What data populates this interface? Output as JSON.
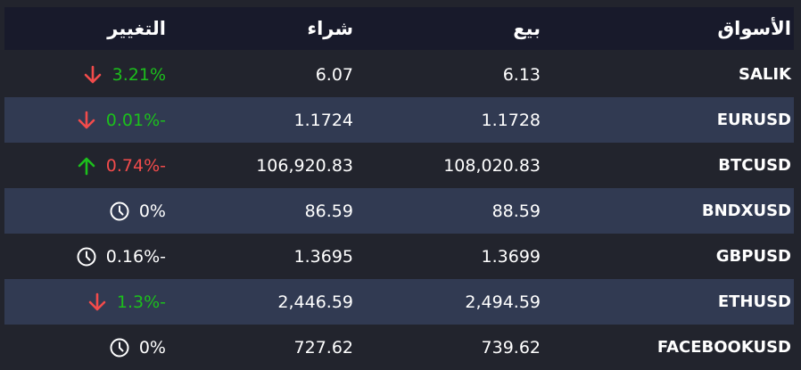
{
  "header": {
    "markets": "الأسواق",
    "sell": "بيع",
    "buy": "شراء",
    "change": "التغيير"
  },
  "colors": {
    "green": "#1cbf1c",
    "red": "#f24b4b",
    "header_bg": "#181a2b",
    "alt_row_bg": "#313a52",
    "bg": "#22242d"
  },
  "rows": [
    {
      "market": "SALIK",
      "sell": "6.13",
      "buy": "6.07",
      "change": "3.21%",
      "change_color": "green",
      "icon": "arrow-down-icon"
    },
    {
      "market": "EURUSD",
      "sell": "1.1728",
      "buy": "1.1724",
      "change": "0.01%-",
      "change_color": "green",
      "icon": "arrow-down-icon"
    },
    {
      "market": "BTCUSD",
      "sell": "108,020.83",
      "buy": "106,920.83",
      "change": "0.74%-",
      "change_color": "red",
      "icon": "arrow-up-icon"
    },
    {
      "market": "BNDXUSD",
      "sell": "88.59",
      "buy": "86.59",
      "change": "0%",
      "change_color": "white",
      "icon": "clock-icon"
    },
    {
      "market": "GBPUSD",
      "sell": "1.3699",
      "buy": "1.3695",
      "change": "0.16%-",
      "change_color": "white",
      "icon": "clock-icon"
    },
    {
      "market": "ETHUSD",
      "sell": "2,494.59",
      "buy": "2,446.59",
      "change": "1.3%-",
      "change_color": "green",
      "icon": "arrow-down-icon"
    },
    {
      "market": "FACEBOOKUSD",
      "sell": "739.62",
      "buy": "727.62",
      "change": "0%",
      "change_color": "white",
      "icon": "clock-icon"
    }
  ]
}
